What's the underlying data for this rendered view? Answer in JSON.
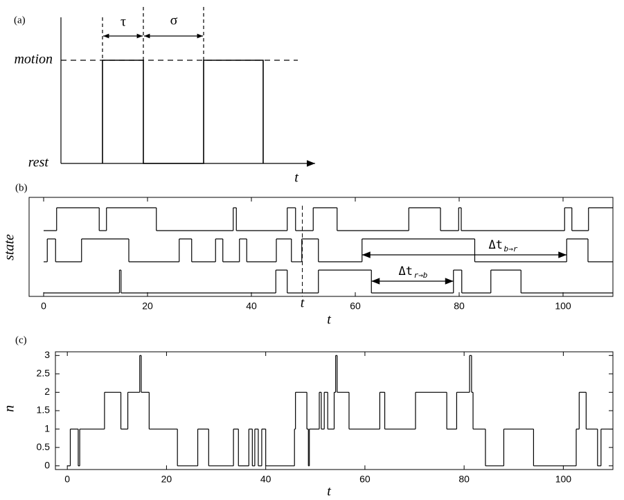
{
  "panel_a": {
    "label": "(a)",
    "y_labels": [
      "motion",
      "rest"
    ],
    "x_label": "t",
    "intervals": [
      "τ",
      "σ"
    ]
  },
  "chart_data": [
    {
      "type": "step",
      "label": "(b)",
      "ylabel": "state",
      "xlabel": "t",
      "xlim": [
        -2.8,
        109.6
      ],
      "xticks": [
        0,
        20,
        40,
        60,
        80,
        100
      ],
      "series": [
        {
          "color": "#000000",
          "x": [
            0,
            2.5,
            10.7,
            12.1,
            21.7,
            36.5,
            37.1,
            46.9,
            48.5,
            51.9,
            56.5,
            70.3,
            76.4,
            79.9,
            80.4,
            100.3,
            101.7,
            104.9
          ],
          "values": [
            0,
            1,
            0,
            1,
            0,
            1,
            0,
            1,
            0,
            1,
            0,
            1,
            0,
            1,
            0,
            1,
            0,
            1
          ]
        },
        {
          "color": "#000000",
          "x": [
            0,
            0.7,
            2.3,
            7.3,
            16.4,
            26.1,
            28.5,
            33.1,
            34.5,
            37.7,
            39.1,
            44.8,
            47.7,
            49.7,
            52.9,
            61.3,
            83,
            100.7,
            104.8
          ],
          "values": [
            0,
            1,
            0,
            1,
            0,
            1,
            0,
            1,
            0,
            1,
            0,
            1,
            0,
            1,
            0,
            1,
            0,
            1,
            0
          ]
        },
        {
          "color": "#000000",
          "x": [
            0,
            14.6,
            14.9,
            44.7,
            46.9,
            52.9,
            63.1,
            78.9,
            80.5,
            86.1,
            91.9
          ],
          "values": [
            0,
            1,
            0,
            1,
            0,
            1,
            0,
            1,
            0,
            1,
            0
          ]
        }
      ],
      "marker": {
        "label": "t",
        "x": 49.8
      },
      "intervals": [
        {
          "text": "Δt",
          "sub": "b→r",
          "from": 61.3,
          "to": 100.7
        },
        {
          "text": "Δt",
          "sub": "r→b",
          "from": 63.1,
          "to": 78.9
        }
      ]
    },
    {
      "type": "step",
      "label": "(c)",
      "ylabel": "n",
      "xlabel": "t",
      "xlim": [
        -2.4,
        110
      ],
      "ylim": [
        -0.1,
        3.1
      ],
      "xticks": [
        0,
        20,
        40,
        60,
        80,
        100
      ],
      "yticks": [
        0,
        0.5,
        1,
        1.5,
        2,
        2.5,
        3
      ],
      "series": [
        {
          "color": "#000000",
          "x": [
            0,
            0.6,
            2.2,
            2.5,
            7.5,
            10.8,
            12.2,
            14.6,
            14.9,
            16.5,
            22.2,
            26.3,
            28.5,
            33.5,
            34.5,
            36.6,
            37.3,
            37.8,
            38.5,
            39.2,
            40.0,
            45.8,
            46.0,
            48.3,
            48.6,
            48.8,
            50.8,
            51.2,
            51.8,
            52.5,
            53.8,
            54.1,
            54.4,
            56.8,
            63.0,
            64.0,
            70.2,
            76.5,
            78.5,
            81.1,
            81.5,
            81.8,
            84.3,
            88.0,
            94.0,
            102.6,
            103.2,
            104.6,
            106.9,
            107.6
          ],
          "values": [
            0,
            1,
            0,
            1,
            2,
            1,
            2,
            3,
            2,
            1,
            0,
            1,
            0,
            1,
            0,
            1,
            0,
            1,
            0,
            1,
            0,
            1,
            2,
            1,
            0,
            1,
            2,
            1,
            2,
            1,
            2,
            3,
            2,
            1,
            2,
            1,
            2,
            1,
            2,
            3,
            2,
            1,
            0,
            1,
            0,
            1,
            2,
            1,
            0,
            1
          ]
        }
      ]
    }
  ]
}
